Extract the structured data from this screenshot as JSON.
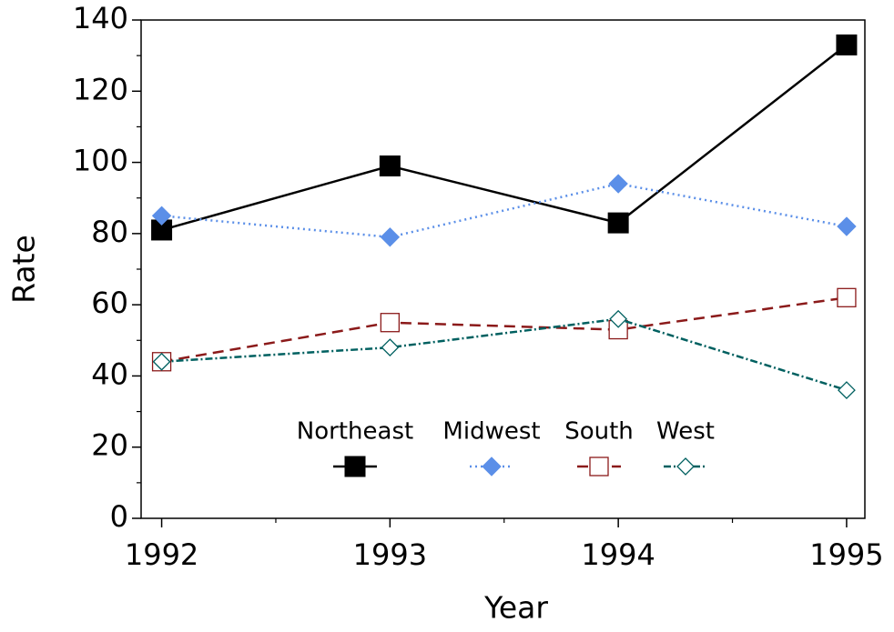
{
  "chart_data": {
    "type": "line",
    "x": [
      1992,
      1993,
      1994,
      1995
    ],
    "xlabel": "Year",
    "ylabel": "Rate",
    "xlim": [
      1991.91,
      1995.08
    ],
    "xticks": [
      1992,
      1993,
      1994,
      1995
    ],
    "ylim": [
      0,
      140
    ],
    "yticks": [
      0,
      20,
      40,
      60,
      80,
      100,
      120,
      140
    ],
    "legend": "lower center",
    "series": [
      {
        "name": "Northeast",
        "color": "#000000",
        "marker": "square",
        "filled": true,
        "dash": "solid",
        "values": [
          81,
          99,
          83,
          133
        ]
      },
      {
        "name": "Midwest",
        "color": "#5b8fe8",
        "marker": "diamond",
        "filled": true,
        "dash": "dotted",
        "values": [
          85,
          79,
          94,
          82
        ]
      },
      {
        "name": "South",
        "color": "#8b1a1a",
        "marker": "square",
        "filled": false,
        "dash": "dashed",
        "values": [
          44,
          55,
          53,
          62
        ]
      },
      {
        "name": "West",
        "color": "#006060",
        "marker": "diamond",
        "filled": false,
        "dash": "dashdot",
        "values": [
          44,
          48,
          56,
          36
        ]
      }
    ]
  }
}
